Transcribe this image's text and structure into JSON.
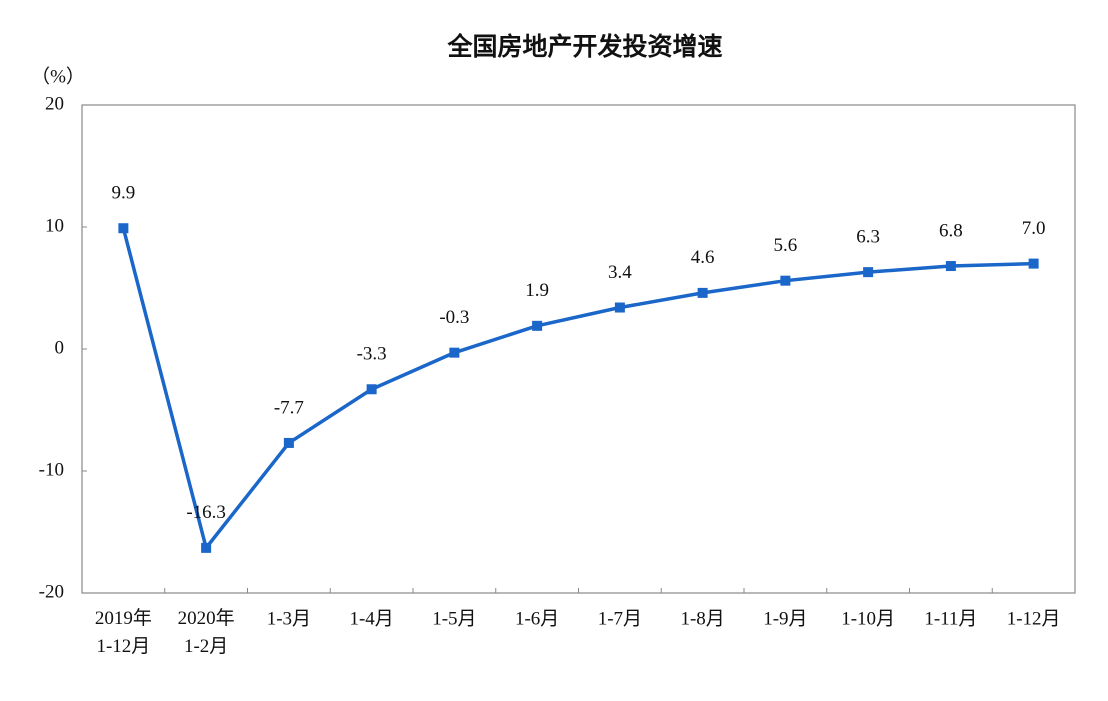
{
  "chart_data": {
    "type": "line",
    "title": "全国房地产开发投资增速",
    "y_label": "（%）",
    "categories": [
      "2019年\n1-12月",
      "2020年\n1-2月",
      "1-3月",
      "1-4月",
      "1-5月",
      "1-6月",
      "1-7月",
      "1-8月",
      "1-9月",
      "1-10月",
      "1-11月",
      "1-12月"
    ],
    "series": [
      {
        "name": "全国房地产开发投资增速",
        "color": "#1a66c9",
        "values": [
          9.9,
          -16.3,
          -7.7,
          -3.3,
          -0.3,
          1.9,
          3.4,
          4.6,
          5.6,
          6.3,
          6.8,
          7
        ],
        "value_labels": [
          "9.9",
          "-16.3",
          "-7.7",
          "-3.3",
          "-0.3",
          "1.9",
          "3.4",
          "4.6",
          "5.6",
          "6.3",
          "6.8",
          "7.0"
        ]
      }
    ],
    "ylim": [
      -20,
      20
    ],
    "yticks": [
      -20,
      -10,
      0,
      10,
      20
    ],
    "grid": false,
    "legend": false
  }
}
